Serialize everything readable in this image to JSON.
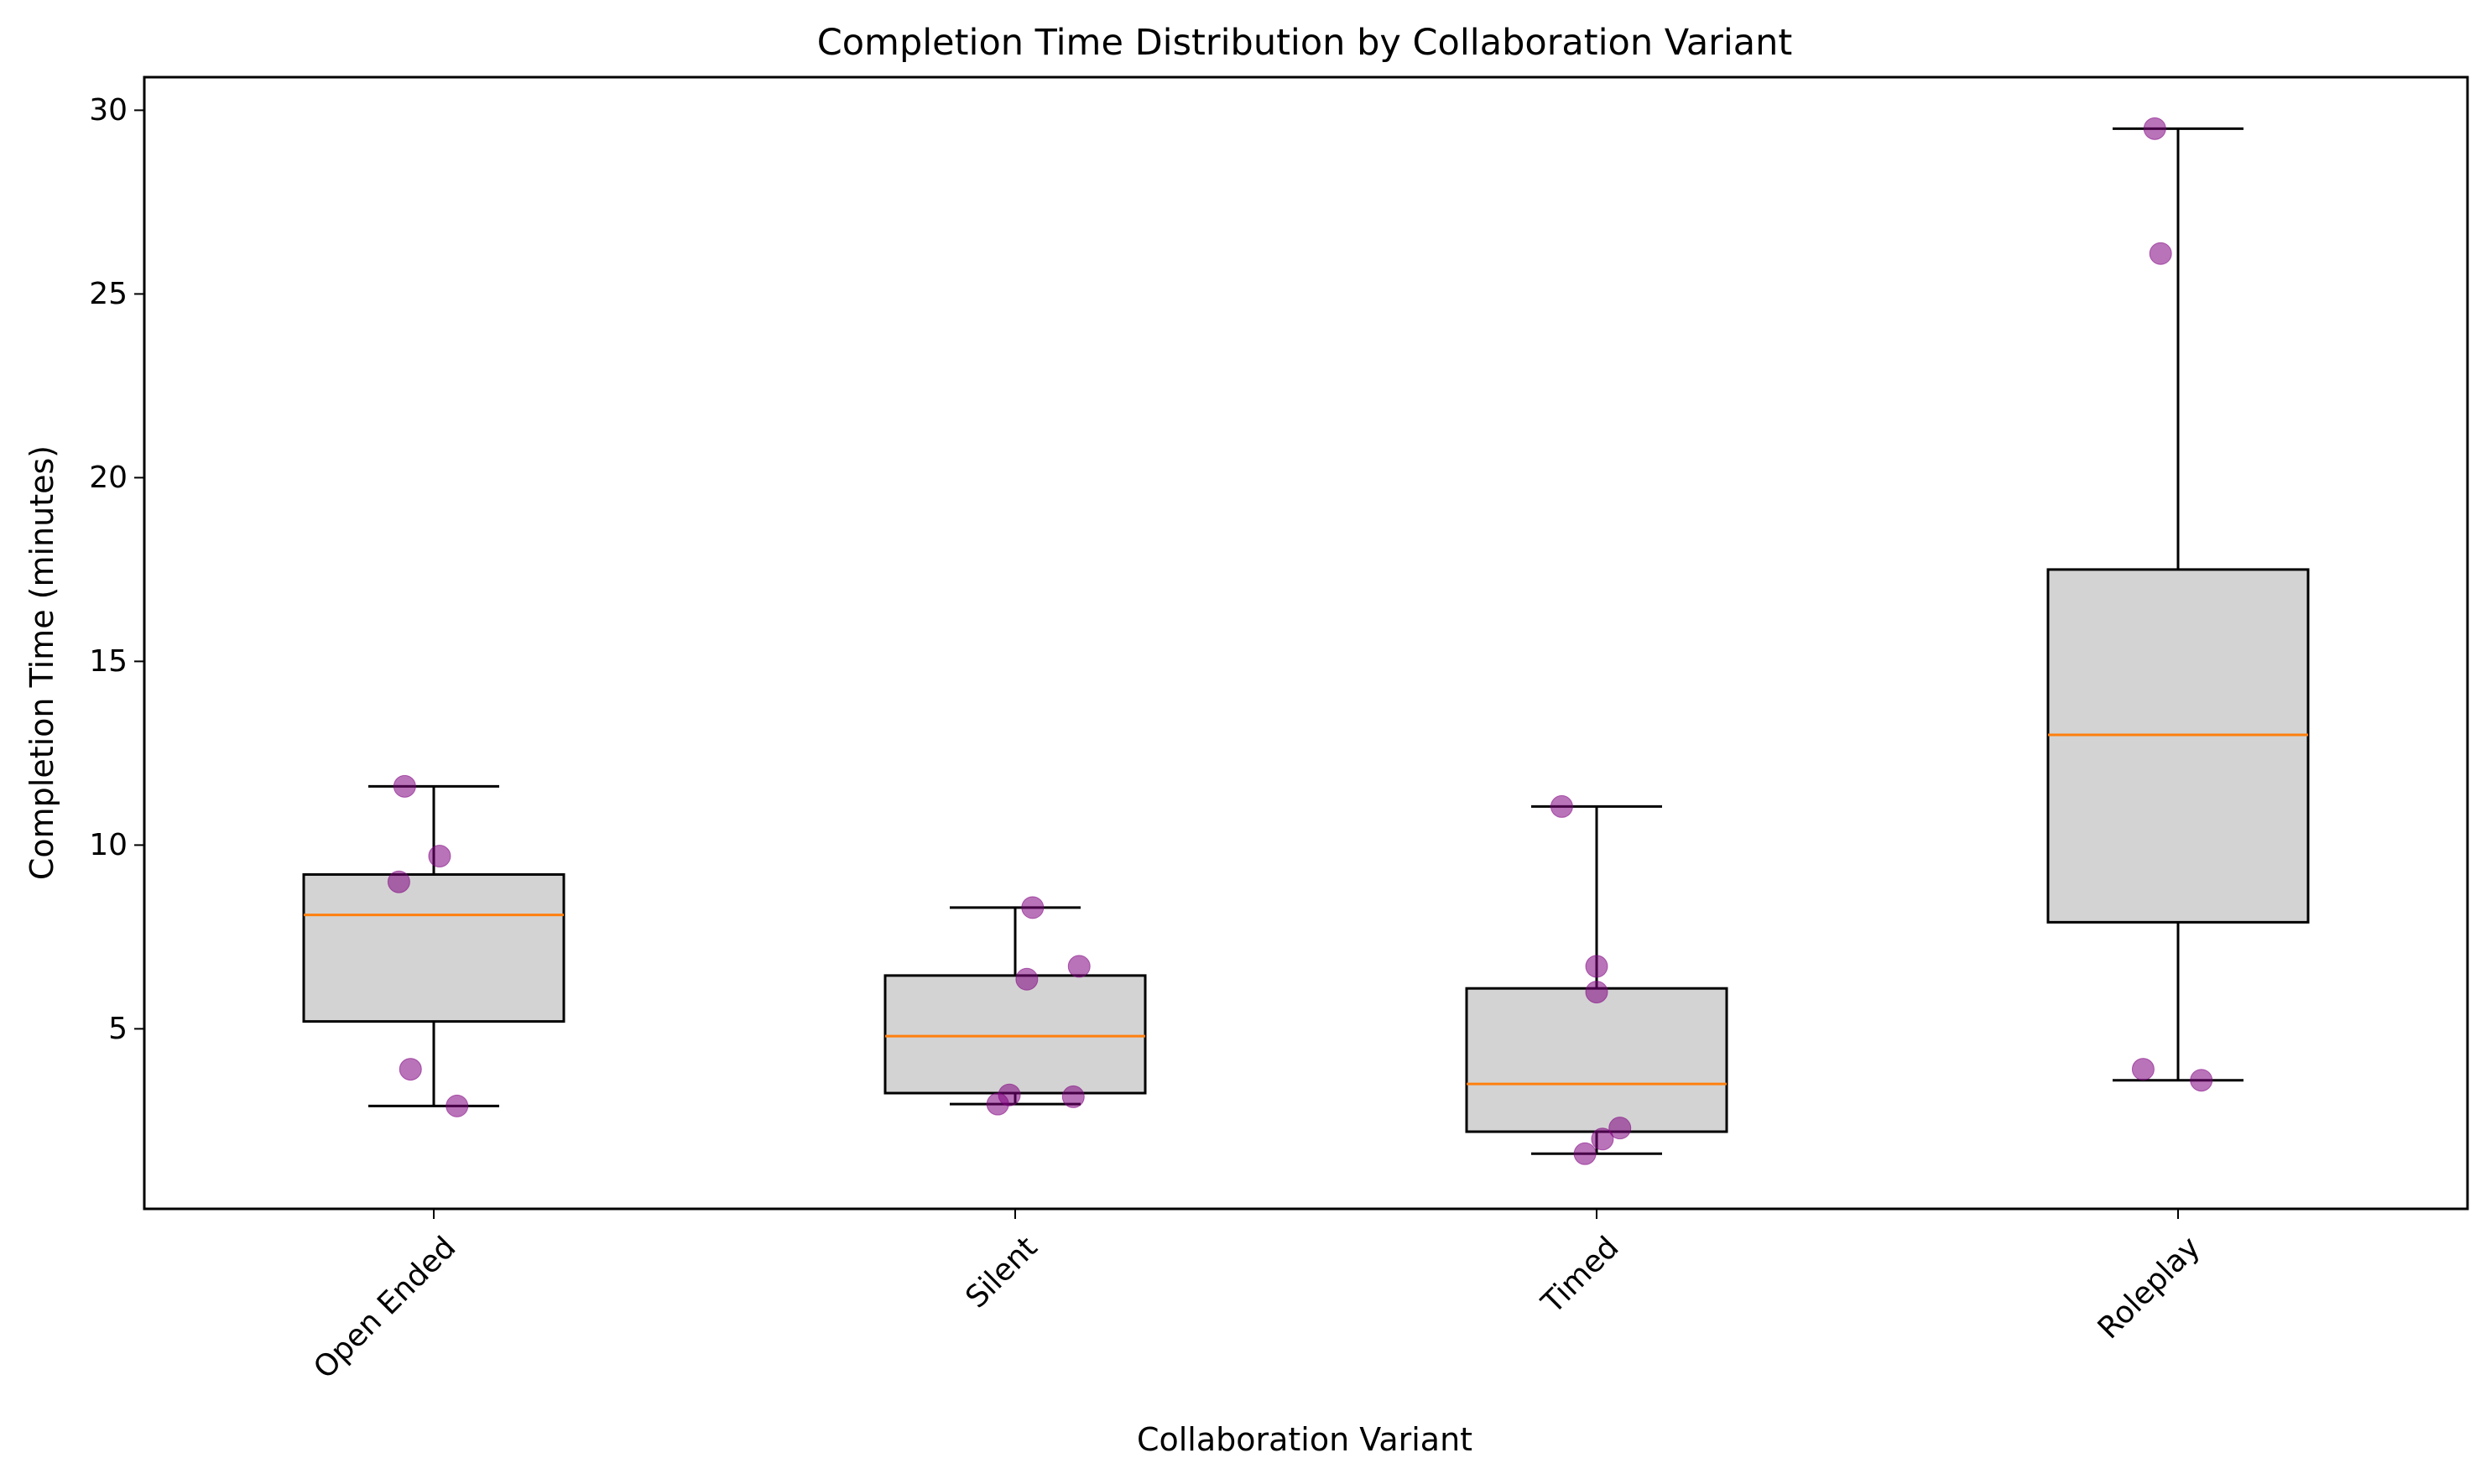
{
  "chart_data": {
    "type": "boxplot",
    "title": "Completion Time Distribution by Collaboration Variant",
    "xlabel": "Collaboration Variant",
    "ylabel": "Completion Time (minutes)",
    "ylim": [
      0.1,
      30.9
    ],
    "yticks": [
      5,
      10,
      15,
      20,
      25,
      30
    ],
    "categories": [
      "Open Ended",
      "Silent",
      "Timed",
      "Roleplay"
    ],
    "grid": false,
    "colors": {
      "box_fill": "#d3d3d3",
      "median": "#ff7f0e",
      "points": "#800080"
    },
    "boxes": [
      {
        "category": "Open Ended",
        "whisker_low": 2.9,
        "q1": 5.2,
        "median": 8.1,
        "q3": 9.2,
        "whisker_high": 11.6
      },
      {
        "category": "Silent",
        "whisker_low": 2.95,
        "q1": 3.25,
        "median": 4.8,
        "q3": 6.45,
        "whisker_high": 8.3
      },
      {
        "category": "Timed",
        "whisker_low": 1.6,
        "q1": 2.2,
        "median": 3.5,
        "q3": 6.1,
        "whisker_high": 11.05
      },
      {
        "category": "Roleplay",
        "whisker_low": 3.6,
        "q1": 7.9,
        "median": 13.0,
        "q3": 17.5,
        "whisker_high": 29.5
      }
    ],
    "points": [
      {
        "category": "Open Ended",
        "values": [
          11.6,
          9.7,
          9.0,
          3.9,
          2.9
        ],
        "jitter": [
          -0.05,
          0.01,
          -0.06,
          -0.04,
          0.04
        ]
      },
      {
        "category": "Silent",
        "values": [
          8.3,
          6.7,
          6.35,
          3.2,
          3.15,
          2.95
        ],
        "jitter": [
          0.03,
          0.11,
          0.02,
          -0.01,
          0.1,
          -0.03
        ]
      },
      {
        "category": "Timed",
        "values": [
          11.05,
          6.7,
          6.0,
          2.3,
          2.0,
          1.6
        ],
        "jitter": [
          -0.06,
          0.0,
          0.0,
          0.04,
          0.01,
          -0.02
        ]
      },
      {
        "category": "Roleplay",
        "values": [
          29.5,
          26.1,
          3.9,
          3.6
        ],
        "jitter": [
          -0.04,
          -0.03,
          -0.06,
          0.04
        ]
      }
    ]
  }
}
